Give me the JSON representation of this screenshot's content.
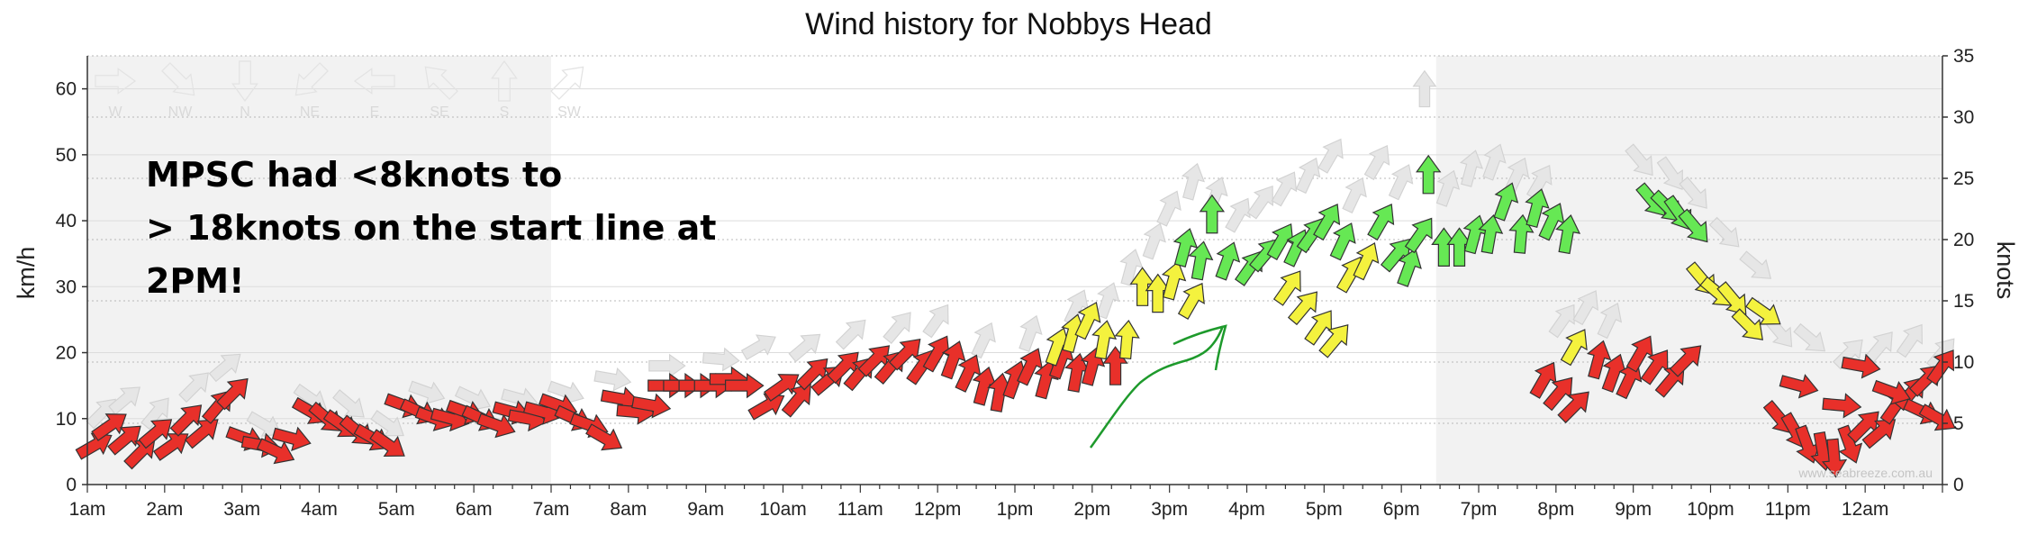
{
  "chart_data": {
    "type": "scatter",
    "title": "Wind history for Nobbys Head",
    "ylabel": "km/h",
    "y2label": "knots",
    "ylim": [
      0,
      65
    ],
    "y2lim": [
      0,
      35
    ],
    "yticks": [
      0,
      10,
      20,
      30,
      40,
      50,
      60
    ],
    "y2ticks": [
      0,
      5,
      10,
      15,
      20,
      25,
      30,
      35
    ],
    "xlim": [
      1,
      25
    ],
    "xticks": [
      {
        "v": 1,
        "label": "1am"
      },
      {
        "v": 2,
        "label": "2am"
      },
      {
        "v": 3,
        "label": "3am"
      },
      {
        "v": 4,
        "label": "4am"
      },
      {
        "v": 5,
        "label": "5am"
      },
      {
        "v": 6,
        "label": "6am"
      },
      {
        "v": 7,
        "label": "7am"
      },
      {
        "v": 8,
        "label": "8am"
      },
      {
        "v": 9,
        "label": "9am"
      },
      {
        "v": 10,
        "label": "10am"
      },
      {
        "v": 11,
        "label": "11am"
      },
      {
        "v": 12,
        "label": "12pm"
      },
      {
        "v": 13,
        "label": "1pm"
      },
      {
        "v": 14,
        "label": "2pm"
      },
      {
        "v": 15,
        "label": "3pm"
      },
      {
        "v": 16,
        "label": "4pm"
      },
      {
        "v": 17,
        "label": "5pm"
      },
      {
        "v": 18,
        "label": "6pm"
      },
      {
        "v": 19,
        "label": "7pm"
      },
      {
        "v": 20,
        "label": "8pm"
      },
      {
        "v": 21,
        "label": "9pm"
      },
      {
        "v": 22,
        "label": "10pm"
      },
      {
        "v": 23,
        "label": "11pm"
      },
      {
        "v": 24,
        "label": "12am"
      }
    ],
    "night_shading": [
      [
        1,
        7
      ],
      [
        18.45,
        25
      ]
    ],
    "grid": true,
    "compass_labels": [
      "W",
      "NW",
      "N",
      "NE",
      "E",
      "SE",
      "S",
      "SW"
    ],
    "credit": "www.seabreeze.com.au",
    "colors": {
      "red": "#e8302a",
      "yellow": "#f4f23e",
      "green": "#66e854",
      "gust": "#e6e6e6",
      "shade": "#f2f2f2"
    },
    "series": [
      {
        "color": "red",
        "points": [
          [
            1.1,
            6,
            60
          ],
          [
            1.3,
            9,
            55
          ],
          [
            1.5,
            7,
            50
          ],
          [
            1.7,
            5,
            45
          ],
          [
            1.9,
            8,
            50
          ],
          [
            2.1,
            6,
            55
          ],
          [
            2.3,
            10,
            45
          ],
          [
            2.5,
            8,
            50
          ],
          [
            2.7,
            12,
            40
          ],
          [
            2.9,
            14,
            45
          ],
          [
            3.05,
            7,
            110
          ],
          [
            3.25,
            6,
            100
          ],
          [
            3.45,
            5,
            115
          ],
          [
            3.65,
            7,
            105
          ],
          [
            3.9,
            11,
            120
          ],
          [
            4.1,
            10,
            130
          ],
          [
            4.3,
            9,
            125
          ],
          [
            4.5,
            8,
            130
          ],
          [
            4.7,
            7,
            120
          ],
          [
            4.9,
            6,
            125
          ],
          [
            5.1,
            12,
            110
          ],
          [
            5.3,
            11,
            115
          ],
          [
            5.5,
            10,
            110
          ],
          [
            5.7,
            10,
            105
          ],
          [
            5.9,
            11,
            110
          ],
          [
            6.1,
            10,
            115
          ],
          [
            6.3,
            9,
            110
          ],
          [
            6.5,
            11,
            105
          ],
          [
            6.7,
            10,
            100
          ],
          [
            6.9,
            11,
            105
          ],
          [
            7.1,
            12,
            110
          ],
          [
            7.3,
            10,
            115
          ],
          [
            7.5,
            9,
            110
          ],
          [
            7.7,
            7,
            120
          ],
          [
            7.9,
            13,
            100
          ],
          [
            8.1,
            11,
            95
          ],
          [
            8.3,
            12,
            100
          ],
          [
            8.5,
            15,
            90
          ],
          [
            8.7,
            15,
            90
          ],
          [
            8.9,
            15,
            90
          ],
          [
            9.1,
            15,
            90
          ],
          [
            9.3,
            16,
            90
          ],
          [
            9.5,
            15,
            90
          ],
          [
            9.8,
            12,
            60
          ],
          [
            10.0,
            15,
            55
          ],
          [
            10.2,
            13,
            40
          ],
          [
            10.4,
            17,
            45
          ],
          [
            10.6,
            16,
            50
          ],
          [
            10.8,
            18,
            45
          ],
          [
            11.0,
            17,
            40
          ],
          [
            11.2,
            19,
            45
          ],
          [
            11.4,
            18,
            40
          ],
          [
            11.6,
            20,
            45
          ],
          [
            11.8,
            18,
            35
          ],
          [
            12.0,
            20,
            30
          ],
          [
            12.2,
            19,
            20
          ],
          [
            12.4,
            17,
            25
          ],
          [
            12.6,
            15,
            15
          ],
          [
            12.8,
            14,
            10
          ],
          [
            13.0,
            16,
            20
          ],
          [
            13.2,
            18,
            25
          ],
          [
            13.4,
            16,
            15
          ],
          [
            13.6,
            19,
            20
          ],
          [
            13.8,
            17,
            10
          ],
          [
            14.0,
            18,
            15
          ],
          [
            14.3,
            18,
            0
          ]
        ]
      },
      {
        "color": "yellow",
        "points": [
          [
            13.55,
            21,
            20
          ],
          [
            13.75,
            23,
            15
          ],
          [
            13.95,
            25,
            25
          ],
          [
            14.15,
            22,
            10
          ],
          [
            14.45,
            22,
            5
          ],
          [
            14.65,
            30,
            0
          ],
          [
            14.85,
            29,
            0
          ],
          [
            15.05,
            31,
            15
          ],
          [
            15.3,
            28,
            30
          ],
          [
            16.55,
            30,
            35
          ],
          [
            16.75,
            27,
            40
          ],
          [
            16.95,
            24,
            35
          ],
          [
            17.15,
            22,
            40
          ],
          [
            17.35,
            32,
            30
          ],
          [
            17.55,
            34,
            25
          ],
          [
            20.25,
            21,
            30
          ],
          [
            21.9,
            31,
            140
          ],
          [
            22.1,
            29,
            130
          ],
          [
            22.3,
            28,
            140
          ],
          [
            22.5,
            24,
            135
          ],
          [
            22.7,
            26,
            125
          ]
        ]
      },
      {
        "color": "green",
        "points": [
          [
            15.2,
            36,
            15
          ],
          [
            15.4,
            34,
            10
          ],
          [
            15.55,
            41,
            0
          ],
          [
            15.75,
            34,
            20
          ],
          [
            16.05,
            33,
            35
          ],
          [
            16.25,
            35,
            40
          ],
          [
            16.45,
            37,
            30
          ],
          [
            16.65,
            36,
            25
          ],
          [
            16.85,
            38,
            35
          ],
          [
            17.05,
            40,
            30
          ],
          [
            17.25,
            37,
            25
          ],
          [
            17.75,
            40,
            30
          ],
          [
            17.95,
            35,
            40
          ],
          [
            18.1,
            33,
            20
          ],
          [
            18.25,
            38,
            35
          ],
          [
            18.35,
            47,
            0
          ],
          [
            18.55,
            36,
            0
          ],
          [
            18.75,
            36,
            0
          ],
          [
            18.95,
            38,
            15
          ],
          [
            19.15,
            38,
            10
          ],
          [
            19.35,
            43,
            20
          ],
          [
            19.55,
            38,
            5
          ],
          [
            19.75,
            42,
            15
          ],
          [
            19.95,
            40,
            25
          ],
          [
            20.15,
            38,
            10
          ],
          [
            21.25,
            43,
            140
          ],
          [
            21.45,
            42,
            135
          ],
          [
            21.6,
            41,
            145
          ],
          [
            21.8,
            39,
            140
          ]
        ]
      },
      {
        "color": "red",
        "points": [
          [
            19.85,
            16,
            30
          ],
          [
            20.05,
            14,
            40
          ],
          [
            20.25,
            12,
            45
          ],
          [
            20.55,
            19,
            15
          ],
          [
            20.75,
            17,
            20
          ],
          [
            20.95,
            16,
            25
          ],
          [
            21.1,
            20,
            30
          ],
          [
            21.3,
            18,
            35
          ],
          [
            21.5,
            16,
            40
          ],
          [
            21.7,
            19,
            45
          ],
          [
            22.9,
            10,
            140
          ],
          [
            23.1,
            8,
            150
          ],
          [
            23.25,
            6,
            160
          ],
          [
            23.45,
            5,
            170
          ],
          [
            23.6,
            4,
            175
          ],
          [
            23.8,
            6,
            160
          ],
          [
            24.0,
            9,
            45
          ],
          [
            24.2,
            8,
            50
          ],
          [
            24.4,
            12,
            35
          ],
          [
            24.6,
            14,
            40
          ],
          [
            24.8,
            16,
            45
          ],
          [
            25.0,
            18,
            35
          ],
          [
            23.15,
            15,
            105
          ],
          [
            23.7,
            12,
            95
          ],
          [
            23.95,
            18,
            100
          ],
          [
            24.35,
            14,
            110
          ],
          [
            24.75,
            11,
            115
          ],
          [
            24.95,
            10,
            120
          ]
        ]
      }
    ],
    "gust_points": [
      [
        1.2,
        11,
        45
      ],
      [
        1.5,
        13,
        50
      ],
      [
        1.9,
        11,
        40
      ],
      [
        2.4,
        15,
        45
      ],
      [
        2.8,
        18,
        50
      ],
      [
        3.3,
        9,
        120
      ],
      [
        3.9,
        13,
        125
      ],
      [
        4.4,
        12,
        130
      ],
      [
        4.9,
        9,
        125
      ],
      [
        5.4,
        14,
        110
      ],
      [
        6.0,
        13,
        115
      ],
      [
        6.6,
        13,
        105
      ],
      [
        7.2,
        14,
        110
      ],
      [
        7.8,
        16,
        100
      ],
      [
        8.5,
        18,
        90
      ],
      [
        9.2,
        19,
        95
      ],
      [
        9.7,
        21,
        60
      ],
      [
        10.3,
        21,
        50
      ],
      [
        10.9,
        23,
        45
      ],
      [
        11.5,
        24,
        40
      ],
      [
        12.0,
        25,
        35
      ],
      [
        12.6,
        22,
        25
      ],
      [
        13.2,
        23,
        20
      ],
      [
        13.8,
        27,
        25
      ],
      [
        14.2,
        28,
        20
      ],
      [
        14.5,
        33,
        15
      ],
      [
        14.8,
        37,
        20
      ],
      [
        15.0,
        42,
        25
      ],
      [
        15.3,
        46,
        15
      ],
      [
        15.6,
        44,
        20
      ],
      [
        15.9,
        41,
        30
      ],
      [
        16.2,
        43,
        35
      ],
      [
        16.5,
        45,
        30
      ],
      [
        16.8,
        47,
        25
      ],
      [
        17.1,
        50,
        30
      ],
      [
        17.4,
        44,
        25
      ],
      [
        17.7,
        49,
        30
      ],
      [
        18.0,
        46,
        25
      ],
      [
        18.3,
        60,
        0
      ],
      [
        18.6,
        45,
        20
      ],
      [
        18.9,
        48,
        15
      ],
      [
        19.2,
        49,
        20
      ],
      [
        19.5,
        47,
        25
      ],
      [
        19.8,
        46,
        30
      ],
      [
        20.1,
        25,
        35
      ],
      [
        20.4,
        27,
        30
      ],
      [
        20.7,
        25,
        25
      ],
      [
        21.1,
        49,
        140
      ],
      [
        21.5,
        47,
        145
      ],
      [
        21.8,
        44,
        140
      ],
      [
        22.2,
        38,
        135
      ],
      [
        22.6,
        33,
        130
      ],
      [
        22.9,
        23,
        140
      ],
      [
        23.3,
        22,
        130
      ],
      [
        23.8,
        20,
        45
      ],
      [
        24.2,
        21,
        40
      ],
      [
        24.6,
        22,
        35
      ],
      [
        25.0,
        20,
        40
      ]
    ],
    "annotation": {
      "lines": [
        "MPSC had <8knots to",
        "> 18knots on the start line at",
        "2PM!"
      ]
    }
  }
}
